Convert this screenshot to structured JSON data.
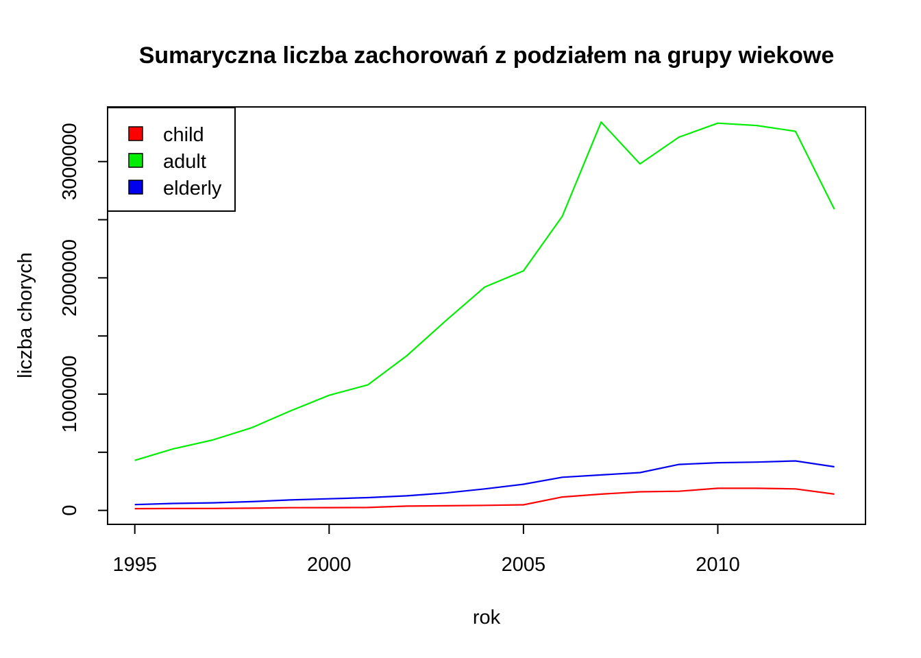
{
  "chart_data": {
    "type": "line",
    "title": "Sumaryczna liczba zachorowań z podziałem na grupy wiekowe",
    "xlabel": "rok",
    "ylabel": "liczba chorych",
    "xlim": [
      1994.3,
      2013.8
    ],
    "ylim": [
      -120000,
      3470000
    ],
    "x_ticks": [
      1995,
      2000,
      2005,
      2010
    ],
    "x_tick_labels": [
      "1995",
      "2000",
      "2005",
      "2010"
    ],
    "y_ticks": [
      0,
      500000,
      1000000,
      1500000,
      2000000,
      2500000,
      3000000
    ],
    "y_tick_labels": [
      "0",
      "",
      "1000000",
      "",
      "2000000",
      "",
      "3000000"
    ],
    "grid": false,
    "legend_position": "top-left",
    "x": [
      1995,
      1996,
      1997,
      1998,
      1999,
      2000,
      2001,
      2002,
      2003,
      2004,
      2005,
      2006,
      2007,
      2008,
      2009,
      2010,
      2011,
      2012,
      2013
    ],
    "series": [
      {
        "name": "child",
        "color": "#ff0000",
        "values": [
          15000,
          16000,
          17000,
          19000,
          23000,
          24000,
          25000,
          37000,
          40000,
          43000,
          48000,
          115000,
          140000,
          160000,
          165000,
          190000,
          190000,
          185000,
          140000
        ]
      },
      {
        "name": "adult",
        "color": "#00ee00",
        "values": [
          430000,
          530000,
          605000,
          710000,
          855000,
          990000,
          1080000,
          1330000,
          1630000,
          1920000,
          2060000,
          2530000,
          3340000,
          2980000,
          3210000,
          3330000,
          3310000,
          3260000,
          2590000
        ]
      },
      {
        "name": "elderly",
        "color": "#0000ee",
        "values": [
          50000,
          60000,
          65000,
          75000,
          90000,
          100000,
          110000,
          125000,
          150000,
          185000,
          225000,
          285000,
          305000,
          325000,
          395000,
          410000,
          415000,
          425000,
          375000
        ]
      }
    ]
  }
}
